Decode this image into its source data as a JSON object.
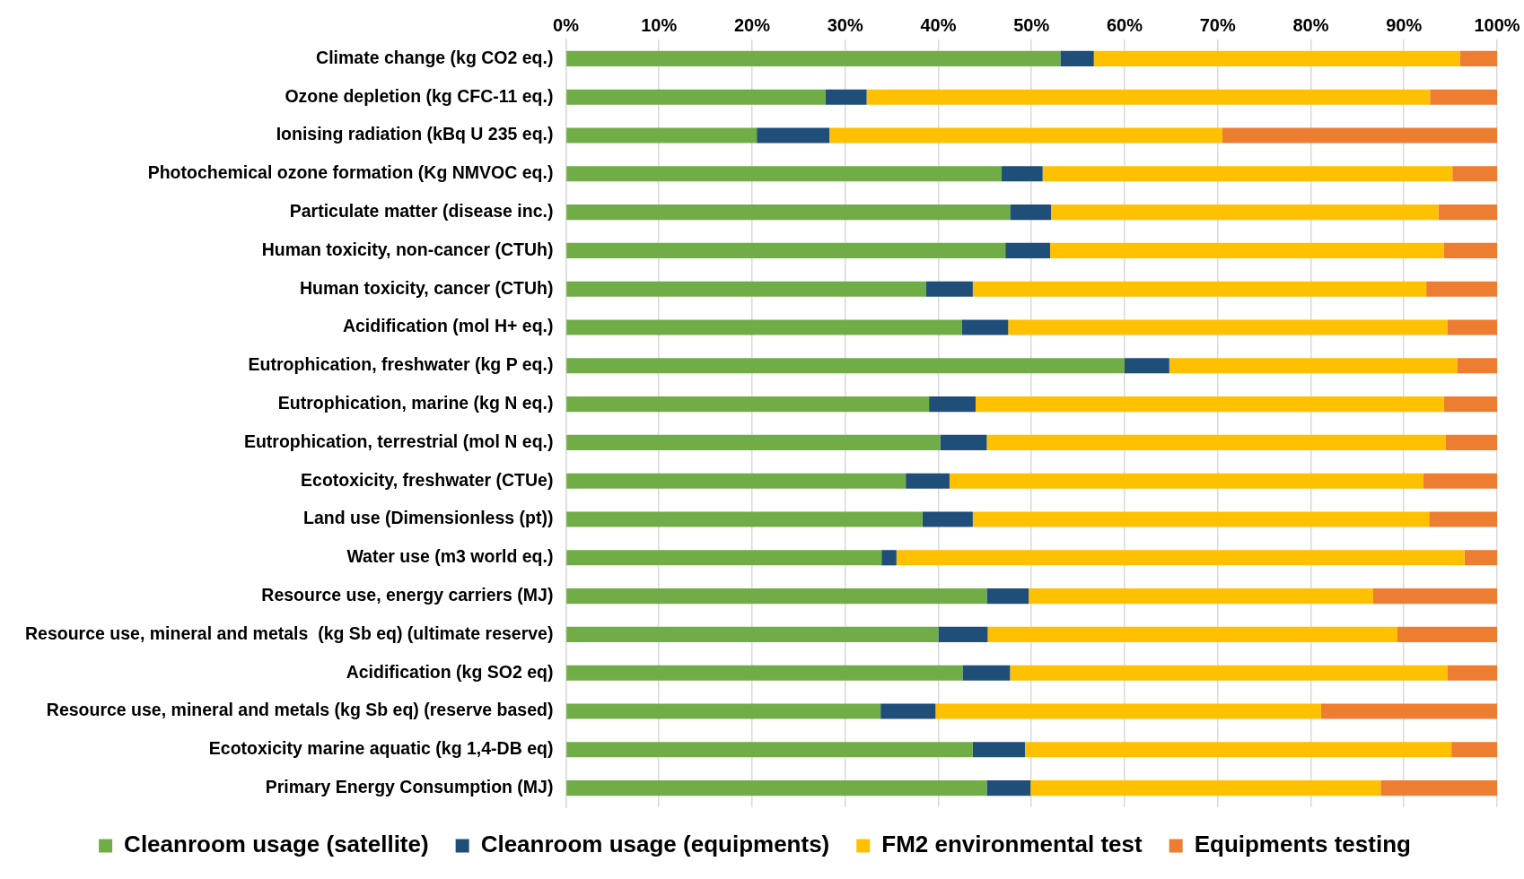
{
  "chart_data": {
    "type": "bar",
    "orientation": "horizontal",
    "stacked": true,
    "categories": [
      "Climate change (kg CO2 eq.)",
      "Ozone depletion (kg CFC-11 eq.)",
      "Ionising radiation (kBq U 235 eq.)",
      "Photochemical ozone formation (Kg NMVOC eq.)",
      "Particulate matter (disease inc.)",
      "Human toxicity, non-cancer (CTUh)",
      "Human toxicity, cancer (CTUh)",
      "Acidification (mol H+ eq.)",
      "Eutrophication, freshwater (kg P eq.)",
      "Eutrophication, marine (kg N eq.)",
      "Eutrophication, terrestrial (mol N eq.)",
      "Ecotoxicity, freshwater (CTUe)",
      "Land use (Dimensionless (pt))",
      "Water use (m3 world eq.)",
      "Resource use, energy carriers (MJ)",
      "Resource use, mineral and metals  (kg Sb eq) (ultimate reserve)",
      "Acidification (kg SO2 eq)",
      "Resource use, mineral and metals (kg Sb eq) (reserve based)",
      "Ecotoxicity marine aquatic (kg 1,4-DB eq)",
      "Primary Energy Consumption (MJ)"
    ],
    "series": [
      {
        "name": "Cleanroom usage (satellite)",
        "color": "#70ad47",
        "values": [
          53.1,
          27.9,
          20.5,
          46.8,
          47.7,
          47.2,
          38.7,
          42.5,
          60.0,
          39.0,
          40.2,
          36.5,
          38.3,
          33.9,
          45.2,
          40.0,
          42.6,
          33.8,
          43.7,
          45.2
        ]
      },
      {
        "name": "Cleanroom usage (equipments)",
        "color": "#1f4e79",
        "values": [
          3.6,
          4.4,
          7.8,
          4.4,
          4.4,
          4.8,
          5.0,
          5.0,
          4.8,
          5.0,
          5.0,
          4.7,
          5.4,
          1.6,
          4.5,
          5.3,
          5.1,
          5.9,
          5.6,
          4.7
        ]
      },
      {
        "name": "FM2 environmental test",
        "color": "#ffc000",
        "values": [
          39.3,
          60.5,
          42.2,
          44.0,
          41.6,
          42.3,
          48.7,
          47.2,
          30.9,
          50.3,
          49.3,
          50.9,
          49.0,
          61.0,
          37.0,
          44.0,
          47.0,
          41.4,
          45.8,
          37.6
        ]
      },
      {
        "name": "Equipments testing",
        "color": "#ed7d31",
        "values": [
          4.0,
          7.2,
          29.5,
          4.8,
          6.3,
          5.7,
          7.6,
          5.3,
          4.3,
          5.7,
          5.5,
          7.9,
          7.3,
          3.5,
          13.3,
          10.7,
          5.3,
          18.9,
          4.9,
          12.5
        ]
      }
    ],
    "xlim": [
      0,
      100
    ],
    "xticks": [
      {
        "value": 0,
        "label": "0%"
      },
      {
        "value": 10,
        "label": "10%"
      },
      {
        "value": 20,
        "label": "20%"
      },
      {
        "value": 30,
        "label": "30%"
      },
      {
        "value": 40,
        "label": "40%"
      },
      {
        "value": 50,
        "label": "50%"
      },
      {
        "value": 60,
        "label": "60%"
      },
      {
        "value": 70,
        "label": "70%"
      },
      {
        "value": 80,
        "label": "80%"
      },
      {
        "value": 90,
        "label": "90%"
      },
      {
        "value": 100,
        "label": "100%"
      }
    ],
    "grid": "x",
    "legend": "bottom"
  }
}
